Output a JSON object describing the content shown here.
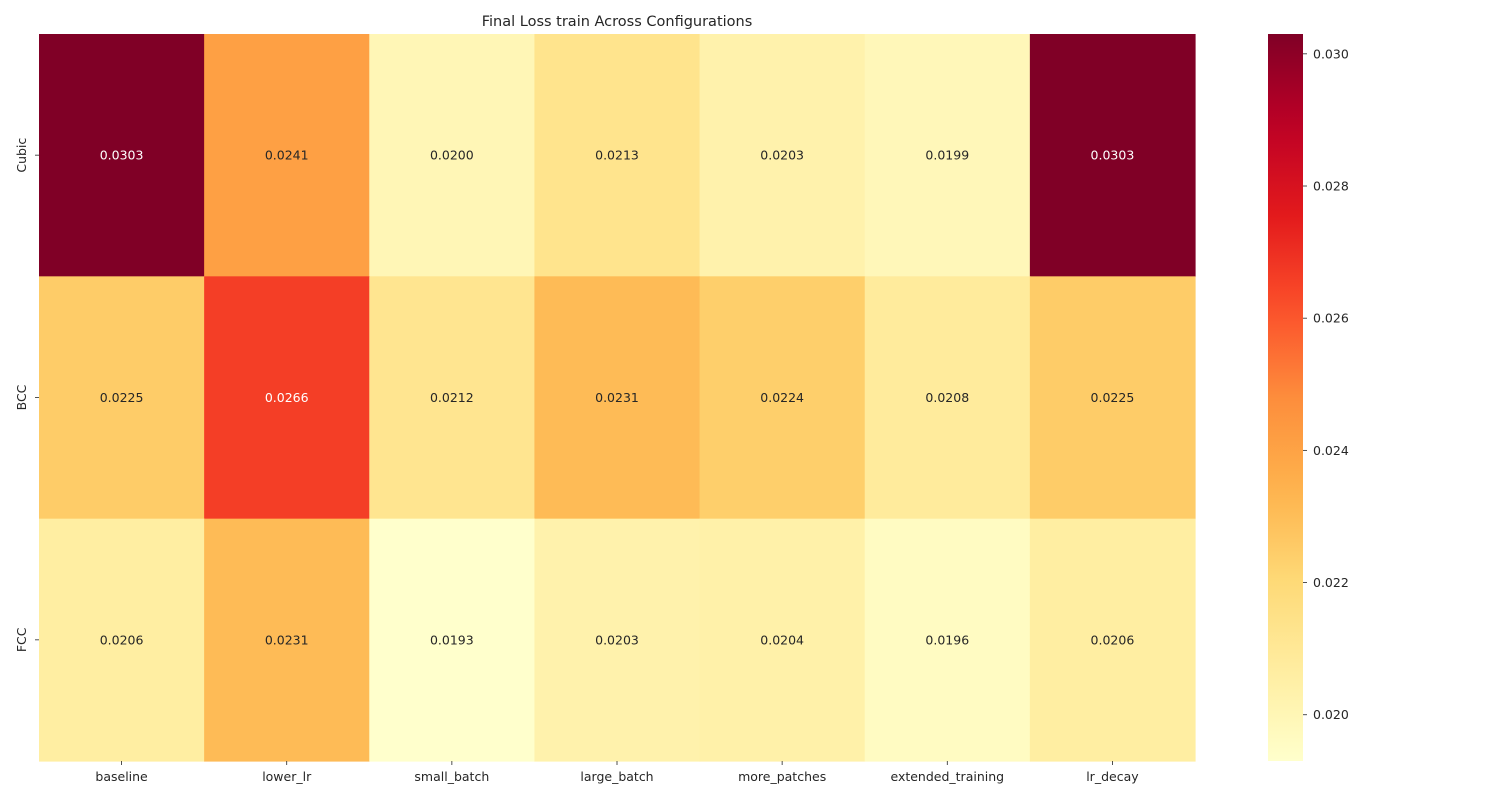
{
  "chart_data": {
    "type": "heatmap",
    "title": "Final Loss train Across Configurations",
    "xlabel": "",
    "ylabel": "",
    "x_categories": [
      "baseline",
      "lower_lr",
      "small_batch",
      "large_batch",
      "more_patches",
      "extended_training",
      "lr_decay"
    ],
    "y_categories": [
      "Cubic",
      "BCC",
      "FCC"
    ],
    "values": [
      [
        0.0303,
        0.0241,
        0.02,
        0.0213,
        0.0203,
        0.0199,
        0.0303
      ],
      [
        0.0225,
        0.0266,
        0.0212,
        0.0231,
        0.0224,
        0.0208,
        0.0225
      ],
      [
        0.0206,
        0.0231,
        0.0193,
        0.0203,
        0.0204,
        0.0196,
        0.0206
      ]
    ],
    "value_format": "4 decimals",
    "colormap": "YlOrRd",
    "color_range": [
      0.0193,
      0.0303
    ],
    "colorbar": {
      "position": "right",
      "ticks": [
        "0.020",
        "0.022",
        "0.024",
        "0.026",
        "0.028",
        "0.030"
      ]
    },
    "grid": false
  }
}
